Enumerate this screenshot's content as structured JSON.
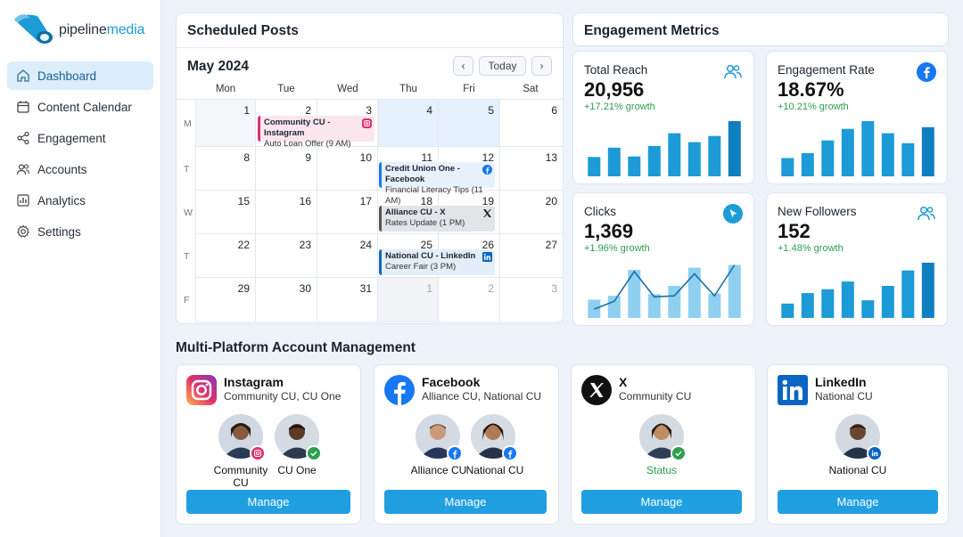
{
  "brand": {
    "part1": "pipeline",
    "part2": "media"
  },
  "nav": [
    {
      "label": "Dashboard",
      "icon": "home-icon",
      "active": true
    },
    {
      "label": "Content Calendar",
      "icon": "calendar-icon"
    },
    {
      "label": "Engagement",
      "icon": "share-icon"
    },
    {
      "label": "Accounts",
      "icon": "users-icon"
    },
    {
      "label": "Analytics",
      "icon": "chart-icon"
    },
    {
      "label": "Settings",
      "icon": "gear-icon"
    }
  ],
  "calendar": {
    "title": "Scheduled Posts",
    "month": "May 2024",
    "today_label": "Today",
    "weekdays": [
      "Mon",
      "Tue",
      "Wed",
      "Thu",
      "Fri",
      "Sat"
    ],
    "week_labels": [
      "M",
      "T",
      "W",
      "T",
      "F"
    ],
    "weeks": [
      [
        "1",
        "2",
        "3",
        "4",
        "5",
        "6"
      ],
      [
        "8",
        "9",
        "10",
        "11",
        "12",
        "13"
      ],
      [
        "15",
        "16",
        "17",
        "18",
        "19",
        "20"
      ],
      [
        "22",
        "23",
        "24",
        "25",
        "26",
        "27"
      ],
      [
        "29",
        "30",
        "31",
        "1",
        "2",
        "3"
      ]
    ],
    "events": [
      {
        "title": "Community CU - Instagram",
        "sub": "Auto Loan Offer (9 AM)",
        "platform": "instagram"
      },
      {
        "title": "Credit Union One - Facebook",
        "sub": "Financial Literacy Tips (11 AM)",
        "platform": "facebook"
      },
      {
        "title": "Alliance CU - X",
        "sub": "Rates Update (1 PM)",
        "platform": "x"
      },
      {
        "title": "National CU - LinkedIn",
        "sub": "Career Fair (3 PM)",
        "platform": "linkedin"
      }
    ]
  },
  "engagement": {
    "title": "Engagement Metrics",
    "metrics": [
      {
        "label": "Total Reach",
        "value": "20,956",
        "growth": "+17.21% growth",
        "icon": "users-icon",
        "bars": [
          0.35,
          0.52,
          0.36,
          0.55,
          0.78,
          0.62,
          0.73,
          1.0
        ]
      },
      {
        "label": "Engagement Rate",
        "value": "18.67%",
        "growth": "+10.21% growth",
        "icon": "facebook-icon",
        "bars": [
          0.33,
          0.42,
          0.65,
          0.86,
          1.0,
          0.78,
          0.6,
          0.89
        ]
      },
      {
        "label": "Clicks",
        "value": "1,369",
        "growth": "+1.96% growth",
        "icon": "cursor-icon",
        "bars": [
          0.33,
          0.4,
          0.87,
          0.43,
          0.58,
          0.91,
          0.44,
          0.96
        ],
        "line": [
          0.16,
          0.3,
          0.84,
          0.38,
          0.4,
          0.8,
          0.4,
          0.96
        ]
      },
      {
        "label": "New Followers",
        "value": "152",
        "growth": "+1.48% growth",
        "icon": "users-icon",
        "bars": [
          0.26,
          0.45,
          0.52,
          0.66,
          0.32,
          0.58,
          0.86,
          1.0
        ]
      }
    ]
  },
  "accounts": {
    "title": "Multi-Platform Account Management",
    "manage_label": "Manage",
    "items": [
      {
        "platform": "Instagram",
        "sub": "Community CU, CU One",
        "avatars": [
          {
            "label": "Community CU",
            "badge": "instagram"
          },
          {
            "label": "CU One",
            "badge": "check"
          }
        ]
      },
      {
        "platform": "Facebook",
        "sub": "Alliance CU, National CU",
        "avatars": [
          {
            "label": "Alliance CU",
            "badge": "facebook"
          },
          {
            "label": "National CU",
            "badge": "facebook"
          }
        ]
      },
      {
        "platform": "X",
        "sub": "Community CU",
        "avatars": [
          {
            "label": "Status",
            "badge": "check"
          }
        ]
      },
      {
        "platform": "LinkedIn",
        "sub": "National CU",
        "avatars": [
          {
            "label": "National CU",
            "badge": "linkedin"
          }
        ]
      }
    ]
  },
  "colors": {
    "accent": "#1f9fe0",
    "bar": "#1c9bd6",
    "growth": "#2e9e4f",
    "active_nav": "#dcedfb"
  }
}
